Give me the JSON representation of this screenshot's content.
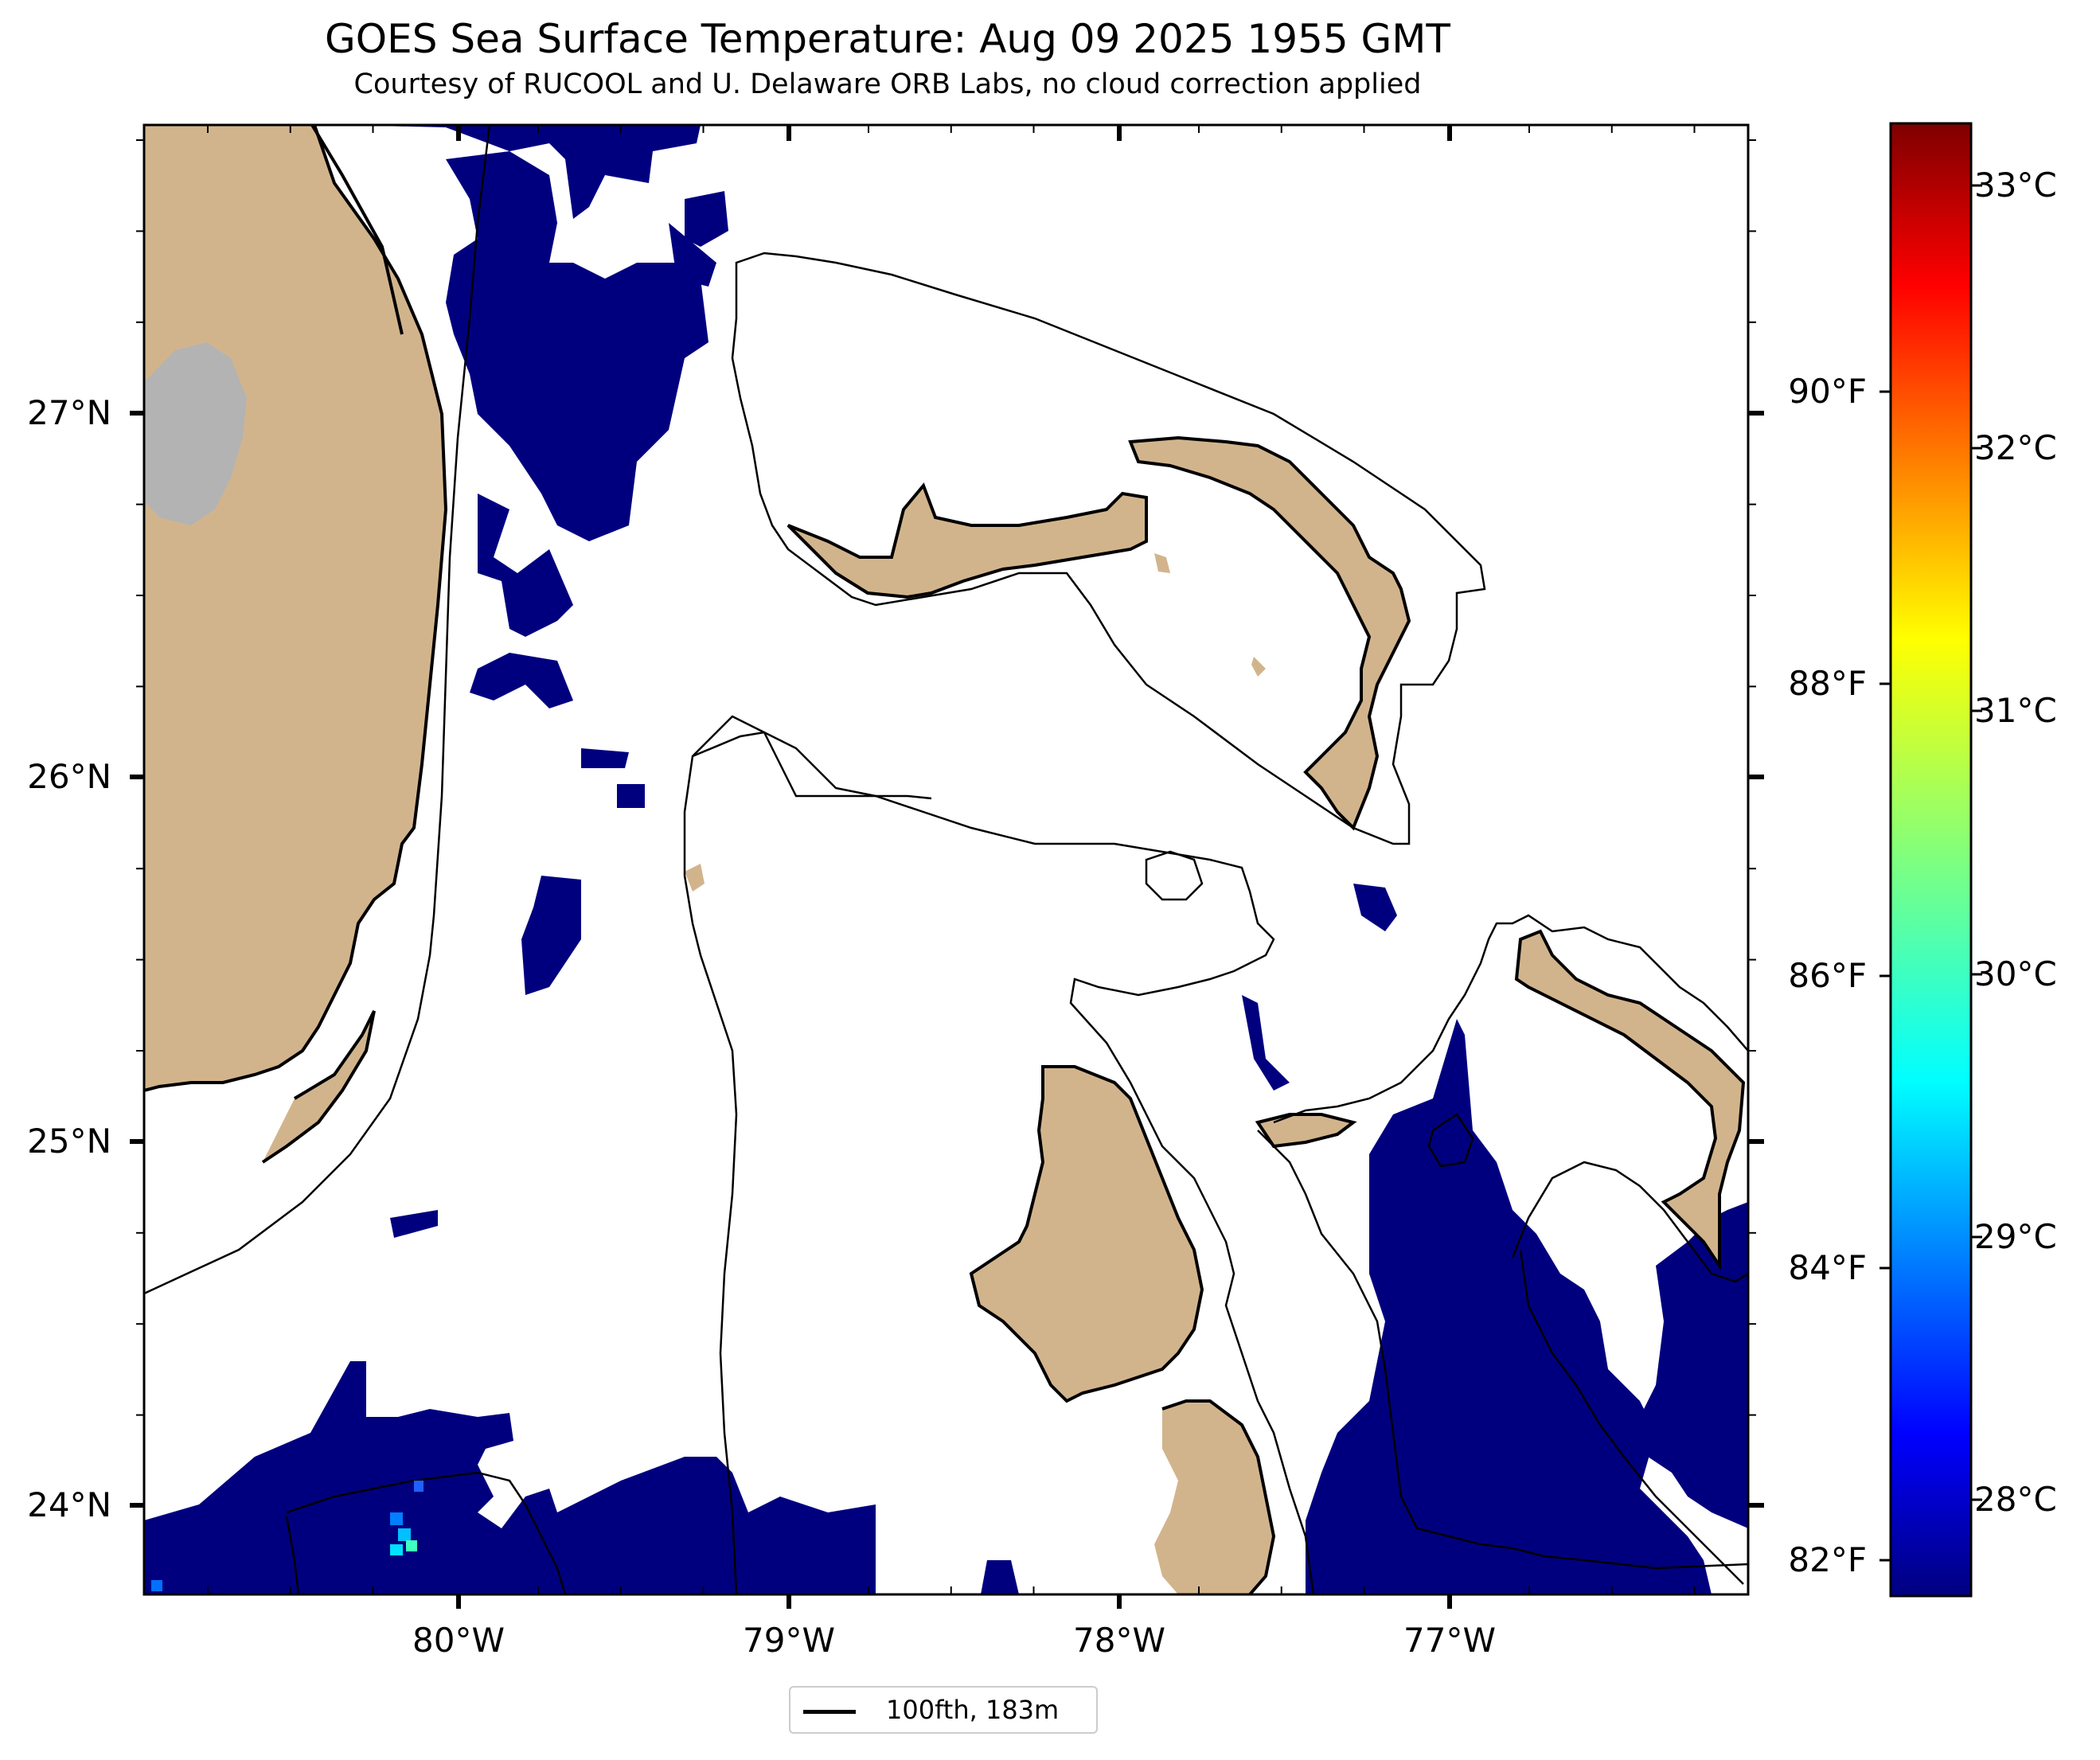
{
  "header": {
    "title": "GOES Sea Surface Temperature: Aug 09 2025 1955 GMT",
    "subtitle": "Courtesy of RUCOOL and U. Delaware ORB Labs, no cloud correction applied"
  },
  "map": {
    "latitude_labels": [
      "27°N",
      "26°N",
      "25°N",
      "24°N"
    ],
    "longitude_labels": [
      "80°W",
      "79°W",
      "78°W",
      "77°W"
    ],
    "extent": {
      "lon_min": -80.95,
      "lon_max": -76.1,
      "lat_min": 23.75,
      "lat_max": 27.8
    },
    "colors": {
      "land": "#d2b48c",
      "lake": "#b3b3b3",
      "cold_water": "#00007f",
      "coast_outline": "#000000"
    }
  },
  "colorbar": {
    "colormap": "jet",
    "celsius_labels": [
      "33°C",
      "32°C",
      "31°C",
      "30°C",
      "29°C",
      "28°C"
    ],
    "fahrenheit_labels": [
      "90°F",
      "88°F",
      "86°F",
      "84°F",
      "82°F"
    ]
  },
  "legend": {
    "label": "100fth, 183m"
  }
}
